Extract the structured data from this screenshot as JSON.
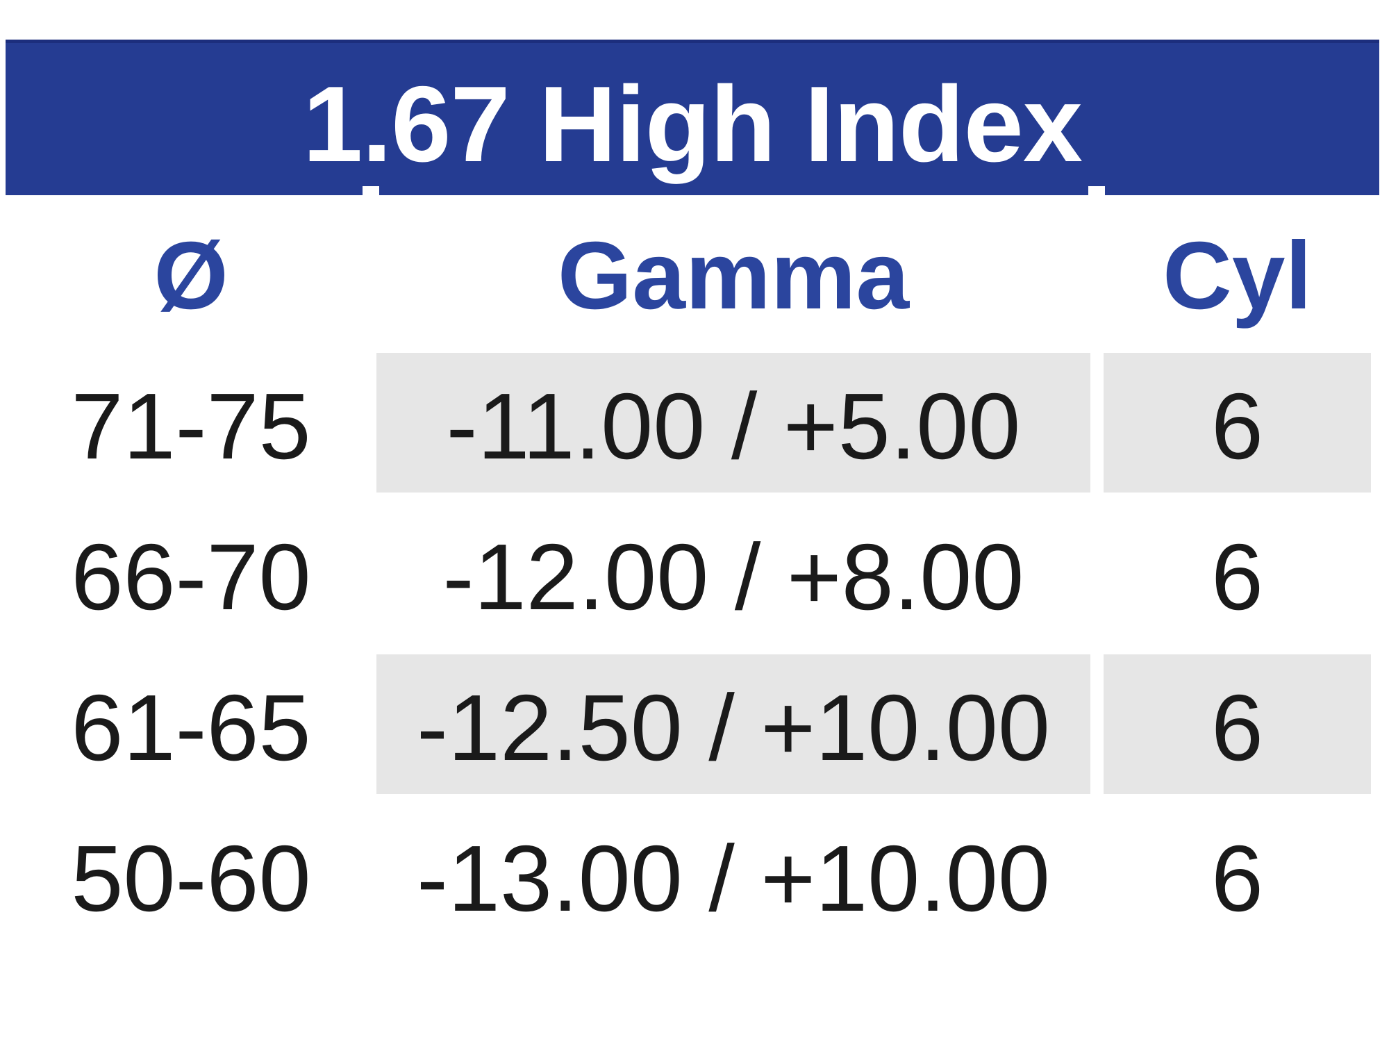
{
  "title": "1.67 High Index",
  "columns": {
    "diameter": "Ø",
    "gamma": "Gamma",
    "cyl": "Cyl"
  },
  "rows": [
    {
      "diameter": "71-75",
      "gamma": "-11.00 / +5.00",
      "cyl": "6"
    },
    {
      "diameter": "66-70",
      "gamma": "-12.00 / +8.00",
      "cyl": "6"
    },
    {
      "diameter": "61-65",
      "gamma": "-12.50 / +10.00",
      "cyl": "6"
    },
    {
      "diameter": "50-60",
      "gamma": "-13.00 / +10.00",
      "cyl": "6"
    }
  ],
  "colors": {
    "banner_blue": "#253C92",
    "banner_border": "#1C2E7D",
    "header_text_blue": "#2B459E",
    "title_text": "#FFFFFF",
    "shaded_cell_gray": "#E6E6E6",
    "data_text": "#1A1A1A"
  }
}
